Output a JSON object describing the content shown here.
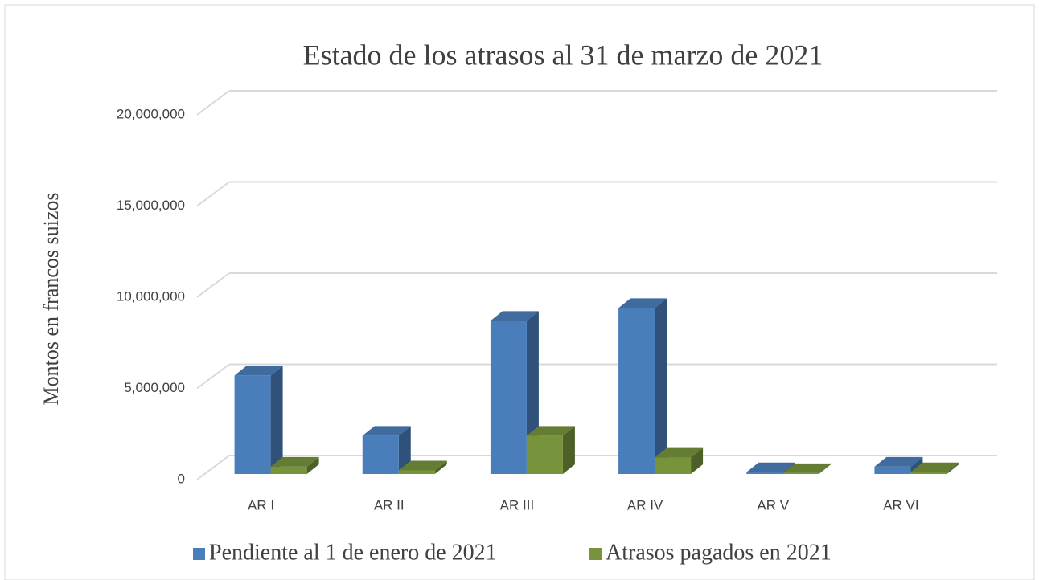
{
  "chart_data": {
    "type": "bar3d",
    "title": "Estado de los atrasos al 31 de marzo de 2021",
    "y_label": "Montos en francos suizos",
    "categories": [
      "AR I",
      "AR II",
      "AR III",
      "AR IV",
      "AR V",
      "AR VI"
    ],
    "series": [
      {
        "name": "Pendiente al 1 de enero de 2021",
        "color": "#4a7ebb",
        "values": [
          5400000,
          2100000,
          8400000,
          9100000,
          100000,
          400000
        ]
      },
      {
        "name": "Atrasos pagados en 2021",
        "color": "#77933c",
        "values": [
          400000,
          200000,
          2100000,
          900000,
          50000,
          100000
        ]
      }
    ],
    "ylim": [
      0,
      20000000
    ],
    "yticks": [
      0,
      {
        "value": 5000000,
        "label": "5,000,000"
      },
      {
        "value": 10000000,
        "label": "10,000,000"
      },
      {
        "value": 15000000,
        "label": "15,000,000"
      },
      {
        "value": 20000000,
        "label": "20,000,000"
      }
    ],
    "grid": true,
    "legend": "bottom"
  }
}
